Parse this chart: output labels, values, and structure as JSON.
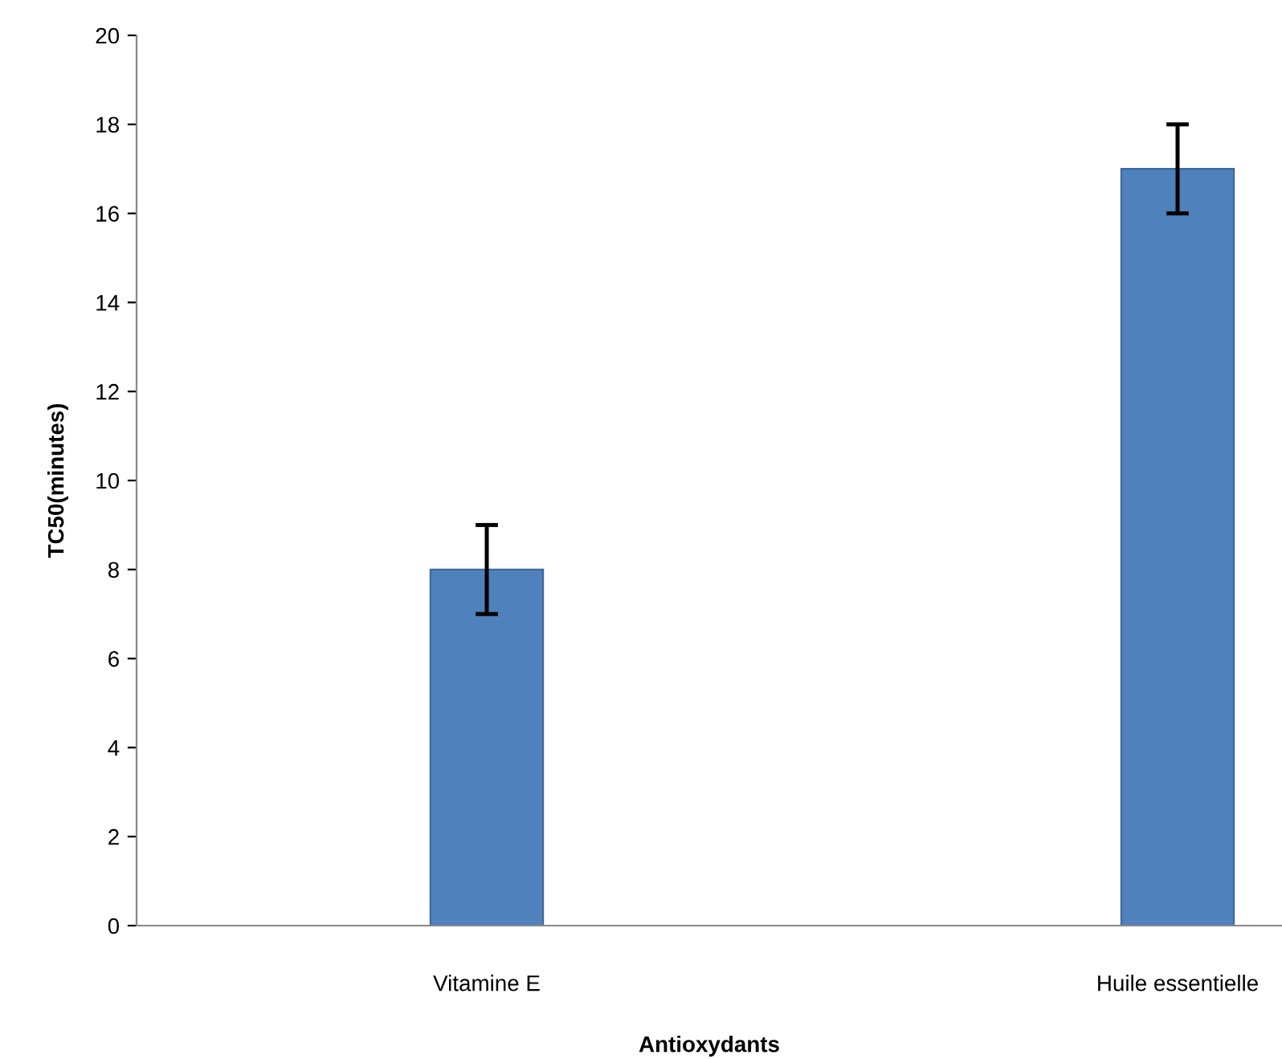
{
  "chart_data": {
    "type": "bar",
    "xlabel": "Antioxydants",
    "ylabel": "TC50(minutes)",
    "categories": [
      "Vitamine E",
      "Huile essentielle"
    ],
    "values": [
      8,
      17
    ],
    "errors": [
      1,
      1
    ],
    "color": "#4f81bd",
    "ylim": [
      0,
      20
    ],
    "yticks": [
      0,
      2,
      4,
      6,
      8,
      10,
      12,
      14,
      16,
      18,
      20
    ],
    "grid": false,
    "legend": false
  }
}
